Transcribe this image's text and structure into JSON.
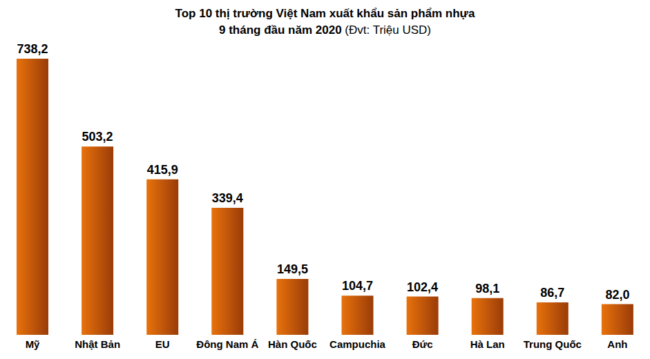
{
  "chart_data": {
    "type": "bar",
    "title": "Top 10 thị trường Việt Nam xuất khẩu sản phẩm nhựa",
    "subtitle": "9 tháng đầu năm 2020",
    "annotations": [
      "(Đvt: Triệu USD)"
    ],
    "categories": [
      "Mỹ",
      "Nhật Bản",
      "EU",
      "Đông Nam Á",
      "Hàn Quốc",
      "Campuchia",
      "Đức",
      "Hà Lan",
      "Trung Quốc",
      "Anh"
    ],
    "values": [
      738.2,
      503.2,
      415.9,
      339.4,
      149.5,
      104.7,
      102.4,
      98.1,
      86.7,
      82.0
    ],
    "value_labels": [
      "738,2",
      "503,2",
      "415,9",
      "339,4",
      "149,5",
      "104,7",
      "102,4",
      "98,1",
      "86,7",
      "82,0"
    ],
    "color": "#e8720c",
    "data_labels": true,
    "tick_labels": "x",
    "grid": false
  }
}
